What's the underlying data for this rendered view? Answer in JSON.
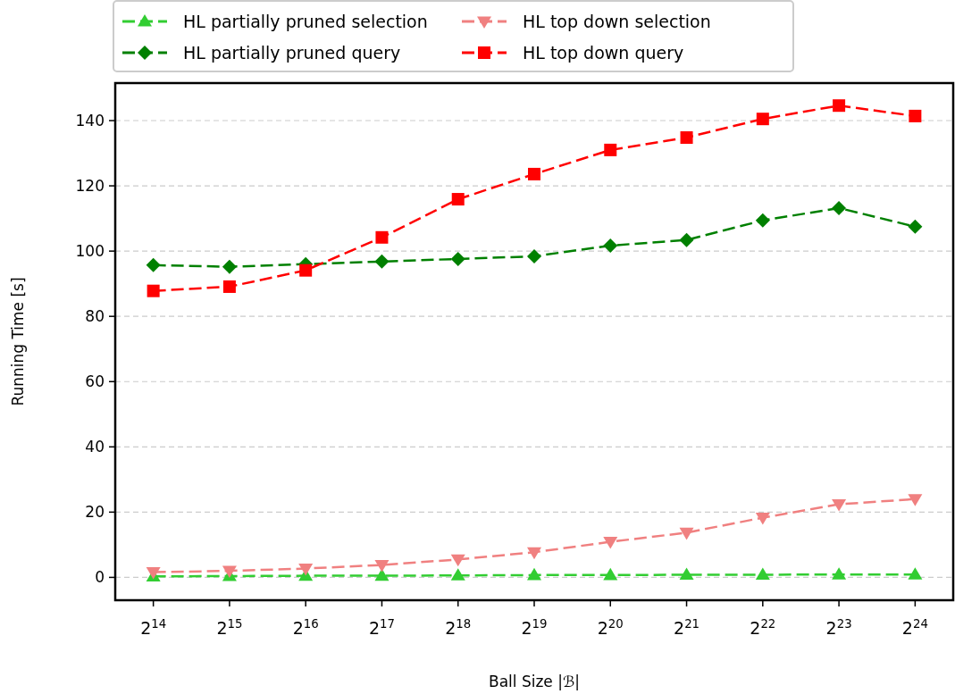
{
  "chart_data": {
    "type": "line",
    "xlabel": "Ball Size |ℬ|",
    "ylabel": "Running Time [s]",
    "categories": [
      "2$^{14}$",
      "2$^{15}$",
      "2$^{16}$",
      "2$^{17}$",
      "2$^{18}$",
      "2$^{19}$",
      "2$^{20}$",
      "2$^{21}$",
      "2$^{22}$",
      "2$^{23}$",
      "2$^{24}$"
    ],
    "series": [
      {
        "name": "HL partially pruned selection",
        "color": "#32cd32",
        "marker": "triangle",
        "values": [
          0.3,
          0.4,
          0.5,
          0.5,
          0.6,
          0.7,
          0.7,
          0.8,
          0.8,
          0.9,
          0.9
        ]
      },
      {
        "name": "HL partially pruned query",
        "color": "#008000",
        "marker": "diamond",
        "values": [
          95.7,
          95.2,
          96,
          96.8,
          97.6,
          98.4,
          101.7,
          103.4,
          109.4,
          113.2,
          107.5
        ]
      },
      {
        "name": "HL top down selection",
        "color": "#f08080",
        "marker": "triangle-down",
        "values": [
          1.6,
          2,
          2.7,
          3.8,
          5.5,
          7.7,
          10.9,
          13.7,
          18.3,
          22.4,
          24
        ]
      },
      {
        "name": "HL top down query",
        "color": "#ff0000",
        "marker": "square",
        "values": [
          87.8,
          89.1,
          94.1,
          104.2,
          115.9,
          123.6,
          131,
          134.8,
          140.5,
          144.6,
          141.4
        ]
      }
    ],
    "ylim": [
      -7,
      151.5
    ],
    "yticks": [
      0,
      20,
      40,
      60,
      80,
      100,
      120,
      140
    ],
    "grid": "y",
    "legend": "top",
    "line_style": "dashed"
  }
}
